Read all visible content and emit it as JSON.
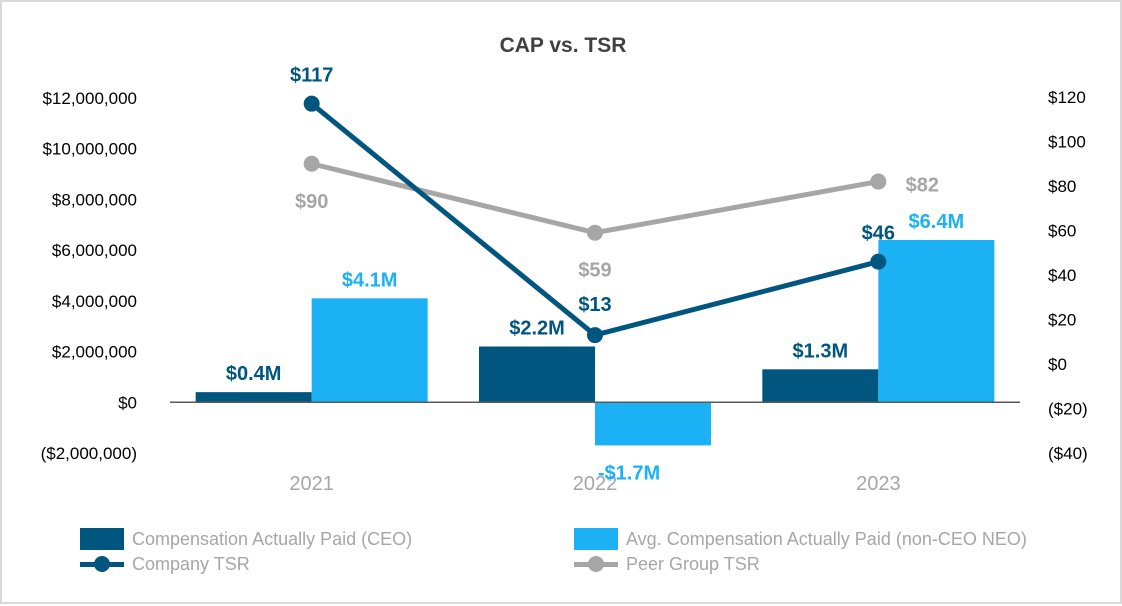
{
  "colors": {
    "ceo": "#00567f",
    "neo": "#1cb1f5",
    "company_tsr": "#00567f",
    "peer_tsr": "#a6a6a6",
    "axis": "#595959",
    "tick_text": "#000000",
    "category_text": "#a6a6a6"
  },
  "chart_data": {
    "type": "bar",
    "title": "CAP vs. TSR",
    "categories": [
      "2021",
      "2022",
      "2023"
    ],
    "ylim": [
      -2000000,
      12000000
    ],
    "y_ticks": [
      -2000000,
      0,
      2000000,
      4000000,
      6000000,
      8000000,
      10000000,
      12000000
    ],
    "y_tick_labels": [
      "($2,000,000)",
      "$0",
      "$2,000,000",
      "$4,000,000",
      "$6,000,000",
      "$8,000,000",
      "$10,000,000",
      "$12,000,000"
    ],
    "y2lim": [
      -40,
      120
    ],
    "y2_ticks": [
      -40,
      -20,
      0,
      20,
      40,
      60,
      80,
      100,
      120
    ],
    "y2_tick_labels": [
      "($40)",
      "($20)",
      "$0",
      "$20",
      "$40",
      "$60",
      "$80",
      "$100",
      "$120"
    ],
    "series": [
      {
        "name": "Compensation Actually Paid (CEO)",
        "kind": "bar",
        "axis": "left",
        "values": [
          400000,
          2200000,
          1300000
        ],
        "labels": [
          "$0.4M",
          "$2.2M",
          "$1.3M"
        ],
        "color": "#00567f",
        "label_color": "#00567f"
      },
      {
        "name": "Avg. Compensation Actually Paid (non-CEO NEO)",
        "kind": "bar",
        "axis": "left",
        "values": [
          4100000,
          -1700000,
          6400000
        ],
        "labels": [
          "$4.1M",
          "-$1.7M",
          "$6.4M"
        ],
        "color": "#1cb1f5",
        "label_color": "#1cb1f5"
      },
      {
        "name": "Company TSR",
        "kind": "line",
        "axis": "right",
        "values": [
          117,
          13,
          46
        ],
        "labels": [
          "$117",
          "$13",
          "$46"
        ],
        "color": "#00567f",
        "label_color": "#00567f"
      },
      {
        "name": "Peer Group TSR",
        "kind": "line",
        "axis": "right",
        "values": [
          90,
          59,
          82
        ],
        "labels": [
          "$90",
          "$59",
          "$82"
        ],
        "color": "#a6a6a6",
        "label_color": "#a6a6a6"
      }
    ],
    "legend": [
      {
        "label": "Compensation Actually Paid (CEO)",
        "marker": "box",
        "color": "#00567f"
      },
      {
        "label": "Avg. Compensation Actually Paid (non-CEO NEO)",
        "marker": "box",
        "color": "#1cb1f5"
      },
      {
        "label": "Company TSR",
        "marker": "line-dot",
        "color": "#00567f"
      },
      {
        "label": "Peer Group TSR",
        "marker": "line-dot",
        "color": "#a6a6a6"
      }
    ],
    "legend_position": "bottom",
    "grid": false
  }
}
